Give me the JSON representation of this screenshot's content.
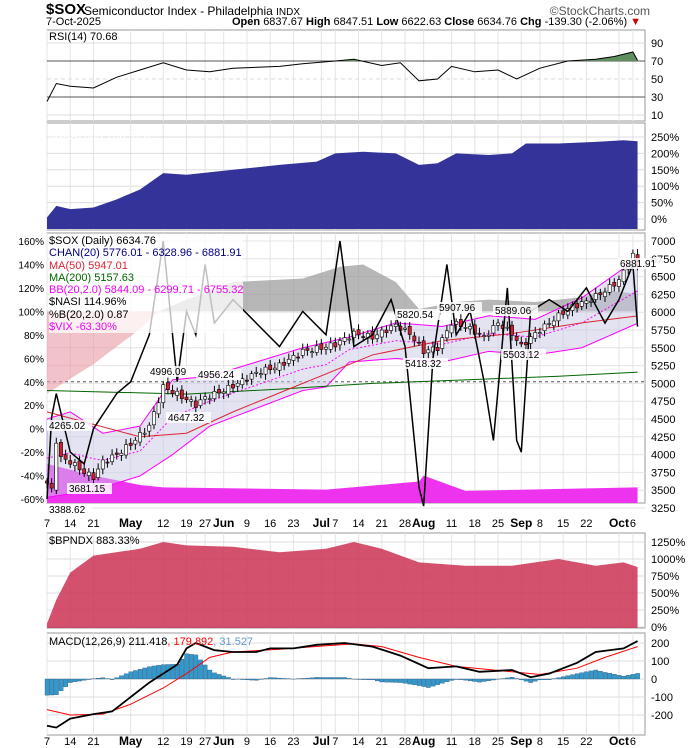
{
  "header": {
    "symbol": "$SOX",
    "name": "Semiconductor Index - Philadelphia",
    "exchange": "INDX",
    "brand": "©StockCharts.com",
    "date": "7-Oct-2025",
    "open_label": "Open",
    "open": "6837.67",
    "high_label": "High",
    "high": "6847.51",
    "low_label": "Low",
    "low": "6622.63",
    "close_label": "Close",
    "close": "6634.76",
    "chg_label": "Chg",
    "chg": "-139.30 (-2.06%)"
  },
  "colors": {
    "price": "#000000",
    "ma50": "#dd2233",
    "ma200": "#006600",
    "bb": "#ff00ff",
    "chan": "#8888cc",
    "nasi": "#999999",
    "vix": "#ee33ee",
    "rsi_fill": "#5f8f5f",
    "naa": "#333399",
    "bpndx": "#cc3355",
    "macd": "#000000",
    "signal": "#ff0000",
    "hist": "#3399cc"
  },
  "chart_data": [
    {
      "type": "line",
      "title": "RSI(14) 70.68",
      "ylim": [
        0,
        100
      ],
      "ticks": [
        "90",
        "70",
        "50",
        "30",
        "10"
      ],
      "values": [
        [
          0,
          25
        ],
        [
          2,
          45
        ],
        [
          5,
          42
        ],
        [
          10,
          40
        ],
        [
          15,
          52
        ],
        [
          20,
          60
        ],
        [
          25,
          68
        ],
        [
          30,
          60
        ],
        [
          35,
          58
        ],
        [
          40,
          62
        ],
        [
          50,
          64
        ],
        [
          55,
          67
        ],
        [
          62,
          70
        ],
        [
          66,
          72
        ],
        [
          72,
          65
        ],
        [
          76,
          68
        ],
        [
          80,
          48
        ],
        [
          84,
          50
        ],
        [
          87,
          64
        ],
        [
          92,
          58
        ],
        [
          97,
          60
        ],
        [
          101,
          50
        ],
        [
          106,
          62
        ],
        [
          112,
          70
        ],
        [
          118,
          72
        ],
        [
          122,
          75
        ],
        [
          126,
          80
        ],
        [
          127,
          70.68
        ]
      ]
    },
    {
      "type": "area",
      "title": "$NAA200R 236.91%",
      "ylim": [
        0,
        250
      ],
      "ticks": [
        "250%",
        "200%",
        "150%",
        "100%",
        "50%",
        "0%"
      ],
      "values": [
        [
          0,
          5
        ],
        [
          2,
          40
        ],
        [
          5,
          30
        ],
        [
          10,
          35
        ],
        [
          15,
          60
        ],
        [
          20,
          90
        ],
        [
          25,
          140
        ],
        [
          30,
          135
        ],
        [
          40,
          150
        ],
        [
          50,
          165
        ],
        [
          58,
          175
        ],
        [
          62,
          200
        ],
        [
          68,
          205
        ],
        [
          75,
          200
        ],
        [
          80,
          165
        ],
        [
          84,
          170
        ],
        [
          88,
          200
        ],
        [
          95,
          195
        ],
        [
          100,
          200
        ],
        [
          103,
          230
        ],
        [
          110,
          230
        ],
        [
          118,
          235
        ],
        [
          124,
          240
        ],
        [
          127,
          237
        ]
      ]
    },
    {
      "type": "candlestick",
      "title": "$SOX (Daily) 6634.76",
      "ylim": [
        3250,
        7000
      ],
      "legend": [
        "CHAN(20) 5776.01 - 6328.96 - 6881.91",
        "MA(50) 5947.01",
        "MA(200) 5157.63",
        "BB(20,2.0) 5844.09 - 6299.71 - 6755.32",
        "$NASI 114.96%",
        "%B(20,2.0) 0.87",
        "$VIX -63.30%"
      ],
      "ticks_right": [
        "7000",
        "6750",
        "6500",
        "6250",
        "6000",
        "5750",
        "5500",
        "5250",
        "5000",
        "4750",
        "4500",
        "4250",
        "4000",
        "3750",
        "3500",
        "3250"
      ],
      "ticks_left": [
        "160%",
        "140%",
        "120%",
        "100%",
        "80%",
        "60%",
        "40%",
        "20%",
        "0%",
        "-20%",
        "-40%",
        "-60%"
      ],
      "annotations": [
        "4265.02",
        "3681.15",
        "3388.62",
        "4996.09",
        "4956.24",
        "4647.32",
        "5820.54",
        "5418.32",
        "5907.96",
        "5889.06",
        "5503.12",
        "6881.91"
      ],
      "close": [
        [
          0,
          3600
        ],
        [
          1,
          3500
        ],
        [
          2,
          4200
        ],
        [
          3,
          3950
        ],
        [
          5,
          3900
        ],
        [
          8,
          3750
        ],
        [
          10,
          3681
        ],
        [
          12,
          3900
        ],
        [
          15,
          4000
        ],
        [
          18,
          4150
        ],
        [
          22,
          4400
        ],
        [
          25,
          4950
        ],
        [
          28,
          4850
        ],
        [
          32,
          4700
        ],
        [
          34,
          4800
        ],
        [
          38,
          4900
        ],
        [
          41,
          5000
        ],
        [
          45,
          5150
        ],
        [
          50,
          5250
        ],
        [
          55,
          5450
        ],
        [
          59,
          5500
        ],
        [
          62,
          5550
        ],
        [
          66,
          5700
        ],
        [
          70,
          5650
        ],
        [
          75,
          5820
        ],
        [
          78,
          5700
        ],
        [
          81,
          5450
        ],
        [
          84,
          5500
        ],
        [
          87,
          5850
        ],
        [
          90,
          5800
        ],
        [
          94,
          5650
        ],
        [
          97,
          5850
        ],
        [
          100,
          5700
        ],
        [
          102,
          5520
        ],
        [
          105,
          5700
        ],
        [
          108,
          5850
        ],
        [
          112,
          6050
        ],
        [
          116,
          6150
        ],
        [
          120,
          6300
        ],
        [
          123,
          6450
        ],
        [
          126,
          6800
        ],
        [
          127,
          6634.76
        ]
      ],
      "ma50": [
        [
          0,
          4600
        ],
        [
          20,
          4250
        ],
        [
          30,
          4300
        ],
        [
          40,
          4600
        ],
        [
          55,
          5000
        ],
        [
          70,
          5400
        ],
        [
          85,
          5600
        ],
        [
          100,
          5700
        ],
        [
          115,
          5850
        ],
        [
          127,
          5947
        ]
      ],
      "ma200": [
        [
          0,
          4900
        ],
        [
          30,
          4850
        ],
        [
          50,
          4920
        ],
        [
          70,
          5000
        ],
        [
          90,
          5050
        ],
        [
          110,
          5100
        ],
        [
          127,
          5158
        ]
      ],
      "bb_upper": [
        [
          0,
          4500
        ],
        [
          5,
          4600
        ],
        [
          12,
          4300
        ],
        [
          20,
          4400
        ],
        [
          27,
          5050
        ],
        [
          35,
          5100
        ],
        [
          45,
          5300
        ],
        [
          55,
          5500
        ],
        [
          65,
          5650
        ],
        [
          75,
          5850
        ],
        [
          85,
          5800
        ],
        [
          95,
          5950
        ],
        [
          105,
          5900
        ],
        [
          115,
          6200
        ],
        [
          127,
          6755
        ]
      ],
      "bb_lower": [
        [
          0,
          3400
        ],
        [
          10,
          3500
        ],
        [
          20,
          3700
        ],
        [
          27,
          4000
        ],
        [
          35,
          4400
        ],
        [
          45,
          4650
        ],
        [
          55,
          4900
        ],
        [
          60,
          4950
        ],
        [
          65,
          5300
        ],
        [
          75,
          5350
        ],
        [
          85,
          5300
        ],
        [
          95,
          5450
        ],
        [
          105,
          5400
        ],
        [
          115,
          5500
        ],
        [
          127,
          5844
        ]
      ],
      "nasi_pct": [
        [
          0,
          30
        ],
        [
          10,
          55
        ],
        [
          20,
          85
        ],
        [
          24,
          100
        ],
        [
          30,
          110
        ],
        [
          40,
          125
        ],
        [
          55,
          128
        ],
        [
          63,
          138
        ],
        [
          68,
          140
        ],
        [
          75,
          125
        ],
        [
          80,
          102
        ],
        [
          88,
          108
        ],
        [
          95,
          110
        ],
        [
          105,
          108
        ],
        [
          115,
          112
        ],
        [
          120,
          118
        ],
        [
          127,
          115
        ]
      ],
      "pctb_pct": [
        [
          0,
          -60
        ],
        [
          1,
          10
        ],
        [
          2,
          30
        ],
        [
          5,
          -20
        ],
        [
          8,
          -30
        ],
        [
          10,
          0
        ],
        [
          15,
          30
        ],
        [
          18,
          40
        ],
        [
          22,
          80
        ],
        [
          25,
          160
        ],
        [
          28,
          40
        ],
        [
          30,
          100
        ],
        [
          32,
          80
        ],
        [
          34,
          140
        ],
        [
          36,
          90
        ],
        [
          40,
          110
        ],
        [
          45,
          90
        ],
        [
          50,
          70
        ],
        [
          55,
          100
        ],
        [
          60,
          80
        ],
        [
          63,
          160
        ],
        [
          66,
          70
        ],
        [
          70,
          80
        ],
        [
          74,
          110
        ],
        [
          77,
          70
        ],
        [
          80,
          -50
        ],
        [
          81,
          -66
        ],
        [
          83,
          60
        ],
        [
          86,
          140
        ],
        [
          88,
          80
        ],
        [
          91,
          100
        ],
        [
          94,
          40
        ],
        [
          96,
          -10
        ],
        [
          99,
          120
        ],
        [
          101,
          -10
        ],
        [
          102,
          -20
        ],
        [
          104,
          100
        ],
        [
          108,
          110
        ],
        [
          112,
          100
        ],
        [
          116,
          120
        ],
        [
          120,
          90
        ],
        [
          123,
          110
        ],
        [
          126,
          140
        ],
        [
          127,
          87
        ]
      ],
      "vix_pct": [
        [
          0,
          -30
        ],
        [
          10,
          -40
        ],
        [
          20,
          -48
        ],
        [
          25,
          -50
        ],
        [
          60,
          -52
        ],
        [
          80,
          -45
        ],
        [
          81,
          -40
        ],
        [
          90,
          -53
        ],
        [
          127,
          -50
        ]
      ]
    },
    {
      "type": "area",
      "title": "$BPNDX 883.33%",
      "ylim": [
        0,
        1250
      ],
      "ticks": [
        "1250%",
        "1000%",
        "750%",
        "500%",
        "250%",
        "0%"
      ],
      "values": [
        [
          0,
          50
        ],
        [
          2,
          400
        ],
        [
          5,
          800
        ],
        [
          10,
          1050
        ],
        [
          20,
          1150
        ],
        [
          25,
          1250
        ],
        [
          30,
          1200
        ],
        [
          40,
          1180
        ],
        [
          50,
          1100
        ],
        [
          60,
          1150
        ],
        [
          66,
          1250
        ],
        [
          72,
          1150
        ],
        [
          80,
          950
        ],
        [
          90,
          900
        ],
        [
          100,
          900
        ],
        [
          110,
          1000
        ],
        [
          118,
          900
        ],
        [
          124,
          950
        ],
        [
          127,
          883
        ]
      ]
    },
    {
      "type": "line",
      "title": "MACD(12,26,9) 211.418",
      "signal_label": ", 179.892",
      "hist_label": ", 31.527",
      "ylim": [
        -300,
        250
      ],
      "ticks": [
        "200",
        "100",
        "0",
        "-100",
        "-200"
      ],
      "macd": [
        [
          0,
          -260
        ],
        [
          2,
          -270
        ],
        [
          5,
          -220
        ],
        [
          10,
          -195
        ],
        [
          14,
          -180
        ],
        [
          18,
          -100
        ],
        [
          22,
          -20
        ],
        [
          25,
          30
        ],
        [
          28,
          80
        ],
        [
          30,
          170
        ],
        [
          32,
          200
        ],
        [
          36,
          160
        ],
        [
          40,
          150
        ],
        [
          45,
          150
        ],
        [
          48,
          170
        ],
        [
          53,
          170
        ],
        [
          58,
          190
        ],
        [
          64,
          200
        ],
        [
          70,
          180
        ],
        [
          76,
          130
        ],
        [
          82,
          60
        ],
        [
          88,
          70
        ],
        [
          93,
          40
        ],
        [
          100,
          50
        ],
        [
          104,
          10
        ],
        [
          108,
          30
        ],
        [
          114,
          90
        ],
        [
          118,
          150
        ],
        [
          124,
          170
        ],
        [
          127,
          211
        ]
      ],
      "signal": [
        [
          0,
          -170
        ],
        [
          5,
          -200
        ],
        [
          12,
          -195
        ],
        [
          18,
          -140
        ],
        [
          25,
          -50
        ],
        [
          30,
          30
        ],
        [
          35,
          120
        ],
        [
          40,
          150
        ],
        [
          50,
          165
        ],
        [
          60,
          185
        ],
        [
          66,
          195
        ],
        [
          72,
          180
        ],
        [
          80,
          120
        ],
        [
          88,
          70
        ],
        [
          100,
          40
        ],
        [
          106,
          25
        ],
        [
          114,
          60
        ],
        [
          120,
          120
        ],
        [
          127,
          180
        ]
      ]
    }
  ],
  "x_axis": [
    [
      "7",
      0
    ],
    [
      "14",
      5
    ],
    [
      "21",
      10
    ],
    [
      "May",
      18
    ],
    [
      "12",
      25
    ],
    [
      "19",
      30
    ],
    [
      "27",
      34
    ],
    [
      "Jun",
      38
    ],
    [
      "9",
      43
    ],
    [
      "16",
      48
    ],
    [
      "23",
      53
    ],
    [
      "Jul",
      59
    ],
    [
      "7",
      62
    ],
    [
      "14",
      67
    ],
    [
      "21",
      72
    ],
    [
      "28",
      77
    ],
    [
      "Aug",
      81
    ],
    [
      "11",
      87
    ],
    [
      "18",
      92
    ],
    [
      "25",
      97
    ],
    [
      "Sep",
      102
    ],
    [
      "8",
      106
    ],
    [
      "15",
      111
    ],
    [
      "22",
      116
    ],
    [
      "Oct",
      123
    ],
    [
      "6",
      126
    ]
  ]
}
